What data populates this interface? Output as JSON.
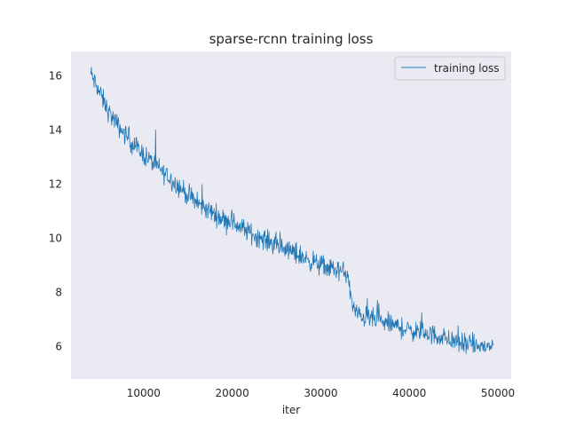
{
  "chart_data": {
    "type": "line",
    "title": "sparse-rcnn training loss",
    "xlabel": "iter",
    "ylabel": "",
    "xlim": [
      1800,
      51500
    ],
    "ylim": [
      4.8,
      16.9
    ],
    "xticks": [
      10000,
      20000,
      30000,
      40000,
      50000
    ],
    "yticks": [
      6,
      8,
      10,
      12,
      14,
      16
    ],
    "grid": false,
    "legend": {
      "location": "top-right",
      "entries": [
        "training loss"
      ]
    },
    "colors": {
      "line": "#1f77b4",
      "plot_background": "#eaeaf2",
      "text": "#262626"
    },
    "series": [
      {
        "name": "training loss",
        "sample_step": 50,
        "x_start": 4000,
        "x_end": 49500,
        "trend_anchors": [
          [
            4000,
            16.1
          ],
          [
            5000,
            15.4
          ],
          [
            6000,
            14.7
          ],
          [
            7000,
            14.2
          ],
          [
            8000,
            13.8
          ],
          [
            9000,
            13.4
          ],
          [
            10000,
            13.1
          ],
          [
            11000,
            12.8
          ],
          [
            12000,
            12.5
          ],
          [
            13000,
            12.2
          ],
          [
            14000,
            11.9
          ],
          [
            15000,
            11.6
          ],
          [
            16000,
            11.3
          ],
          [
            17000,
            11.1
          ],
          [
            18000,
            10.9
          ],
          [
            19000,
            10.7
          ],
          [
            20000,
            10.6
          ],
          [
            22000,
            10.2
          ],
          [
            24000,
            9.9
          ],
          [
            26000,
            9.6
          ],
          [
            28000,
            9.3
          ],
          [
            30000,
            9.0
          ],
          [
            32000,
            8.8
          ],
          [
            33000,
            8.7
          ],
          [
            33500,
            7.6
          ],
          [
            34000,
            7.2
          ],
          [
            36000,
            7.0
          ],
          [
            38000,
            6.8
          ],
          [
            40000,
            6.6
          ],
          [
            42000,
            6.5
          ],
          [
            44000,
            6.3
          ],
          [
            46000,
            6.1
          ],
          [
            48000,
            6.0
          ],
          [
            49500,
            6.0
          ]
        ],
        "noise_amplitude": 0.35
      }
    ]
  }
}
